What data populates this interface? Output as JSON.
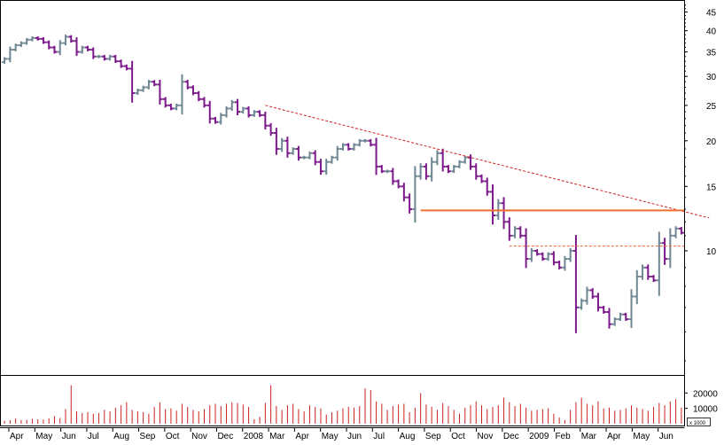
{
  "chart_data": {
    "type": "ohlc",
    "scale": "log",
    "price_axis": {
      "ylim": [
        4.6,
        48
      ],
      "ticks": [
        10,
        15,
        20,
        25,
        30,
        35,
        40,
        45
      ],
      "tick_labels": [
        "10",
        "15",
        "20",
        "25",
        "30",
        "35",
        "40",
        "45"
      ]
    },
    "volume_axis": {
      "ylim": [
        0,
        30000
      ],
      "ticks": [
        10000,
        20000
      ],
      "tick_labels": [
        "10000",
        "20000"
      ],
      "unit_label": "x 1000"
    },
    "x_tick_labels": [
      "Apr",
      "May",
      "Jun",
      "Jul",
      "Aug",
      "Sep",
      "Oct",
      "Nov",
      "Dec",
      "2008",
      "Mar",
      "Apr",
      "May",
      "Jun",
      "Jul",
      "Aug",
      "Sep",
      "Oct",
      "Nov",
      "Dec",
      "2009",
      "Feb",
      "Mar",
      "Apr",
      "May",
      "Jun"
    ],
    "colors": {
      "up": "#6f8793",
      "down": "#7d1a8c",
      "volume": "#cc2222",
      "trendline": "#cc2222",
      "resistance": "#f07030",
      "support": "#ee6633"
    },
    "weekly_close": [
      33.5,
      35.5,
      36.5,
      37.0,
      37.8,
      38.2,
      38.0,
      37.2,
      36.0,
      35.0,
      37.0,
      38.5,
      37.5,
      35.0,
      36.0,
      35.5,
      34.0,
      34.0,
      33.5,
      34.0,
      33.0,
      32.0,
      31.5,
      27.0,
      27.5,
      28.0,
      29.0,
      28.5,
      26.0,
      25.0,
      24.5,
      25.0,
      29.0,
      28.0,
      27.0,
      26.0,
      25.0,
      23.0,
      22.5,
      23.5,
      24.5,
      25.5,
      24.0,
      24.5,
      23.5,
      24.0,
      23.5,
      22.0,
      21.0,
      19.0,
      20.0,
      18.5,
      19.0,
      18.0,
      18.0,
      18.5,
      17.5,
      16.5,
      17.5,
      18.0,
      19.0,
      19.5,
      19.0,
      19.5,
      20.0,
      20.0,
      19.5,
      17.0,
      16.5,
      16.5,
      15.5,
      15.0,
      14.0,
      13.0,
      16.0,
      17.0,
      16.0,
      17.5,
      18.5,
      17.0,
      16.5,
      17.0,
      17.5,
      18.0,
      17.0,
      16.0,
      15.5,
      14.5,
      12.5,
      13.5,
      12.0,
      11.0,
      11.5,
      11.0,
      9.5,
      10.0,
      9.8,
      9.5,
      9.8,
      9.3,
      9.0,
      9.5,
      10.0,
      7.0,
      7.3,
      7.8,
      7.5,
      7.0,
      6.8,
      6.3,
      6.5,
      6.7,
      6.5,
      7.5,
      8.5,
      9.0,
      8.5,
      8.3,
      10.5,
      9.5,
      11.0,
      11.5,
      11.2
    ],
    "weekly_volume": [
      1800,
      2200,
      3500,
      2400,
      2600,
      3200,
      2900,
      2700,
      3500,
      5000,
      3800,
      9500,
      25000,
      8000,
      7000,
      7500,
      6500,
      7000,
      9000,
      8000,
      10500,
      12000,
      14000,
      9000,
      8000,
      7500,
      6500,
      11000,
      14000,
      9500,
      10000,
      8500,
      13000,
      11000,
      9000,
      8000,
      9500,
      12000,
      13000,
      11500,
      13000,
      14000,
      13500,
      12500,
      11000,
      3000,
      4500,
      13500,
      25000,
      11500,
      9000,
      12000,
      13000,
      9500,
      8000,
      12000,
      11000,
      10000,
      6000,
      7500,
      8500,
      10000,
      11000,
      10500,
      11500,
      23000,
      22000,
      14500,
      13000,
      9000,
      11500,
      12500,
      13000,
      7500,
      10500,
      20000,
      12500,
      11000,
      9000,
      13500,
      11500,
      9000,
      6500,
      10500,
      12000,
      14500,
      12000,
      9500,
      11000,
      12000,
      17000,
      14000,
      11500,
      13000,
      10500,
      8500,
      9000,
      9500,
      10000,
      6500,
      4000,
      2500,
      9000,
      14000,
      17000,
      13000,
      12000,
      14500,
      10000,
      10500,
      8500,
      9000,
      10000,
      12000,
      10500,
      9500,
      8500,
      11000,
      13500,
      12000,
      14500,
      16000,
      10500,
      9500,
      9000
    ],
    "trendline": {
      "from": {
        "week": 47,
        "price": 25.0
      },
      "to": {
        "week": 127,
        "price": 12.3
      }
    },
    "horizontal_lines": [
      {
        "name": "resistance",
        "price": 12.9,
        "from_week": 75,
        "style": "solid"
      },
      {
        "name": "support",
        "price": 10.3,
        "from_week": 91,
        "style": "dashed"
      }
    ]
  }
}
